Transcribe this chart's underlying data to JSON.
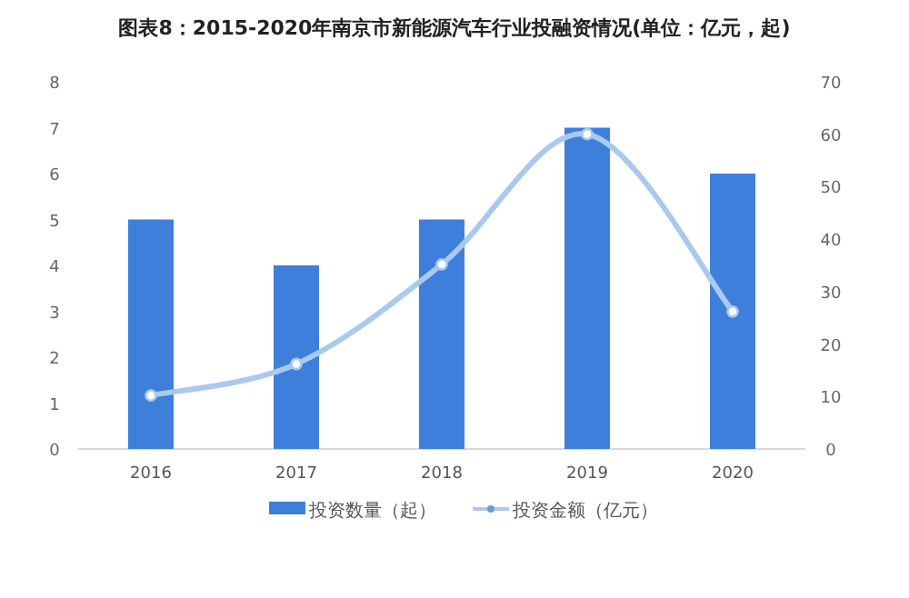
{
  "chart_data": {
    "type": "bar",
    "title": "图表8：2015-2020年南京市新能源汽车行业投融资情况(单位：亿元，起)",
    "categories": [
      "2016",
      "2017",
      "2018",
      "2019",
      "2020"
    ],
    "series": [
      {
        "name": "投资数量（起）",
        "color": "#3f7fdc",
        "values": [
          5,
          4,
          5,
          7,
          6
        ]
      },
      {
        "name": "投资金额（亿元）",
        "type": "line",
        "axis": "y2",
        "color": "#a9c9ef",
        "values": [
          10.2,
          16.2,
          35.2,
          60,
          26.2
        ]
      }
    ],
    "ylim": [
      0,
      8
    ],
    "yticks": [
      0,
      1,
      2,
      3,
      4,
      5,
      6,
      7,
      8
    ],
    "y2lim": [
      0,
      70
    ],
    "y2ticks": [
      0,
      10,
      20,
      30,
      40,
      50,
      60,
      70
    ],
    "marker": "circle",
    "legend": "bottom",
    "grid": false
  }
}
